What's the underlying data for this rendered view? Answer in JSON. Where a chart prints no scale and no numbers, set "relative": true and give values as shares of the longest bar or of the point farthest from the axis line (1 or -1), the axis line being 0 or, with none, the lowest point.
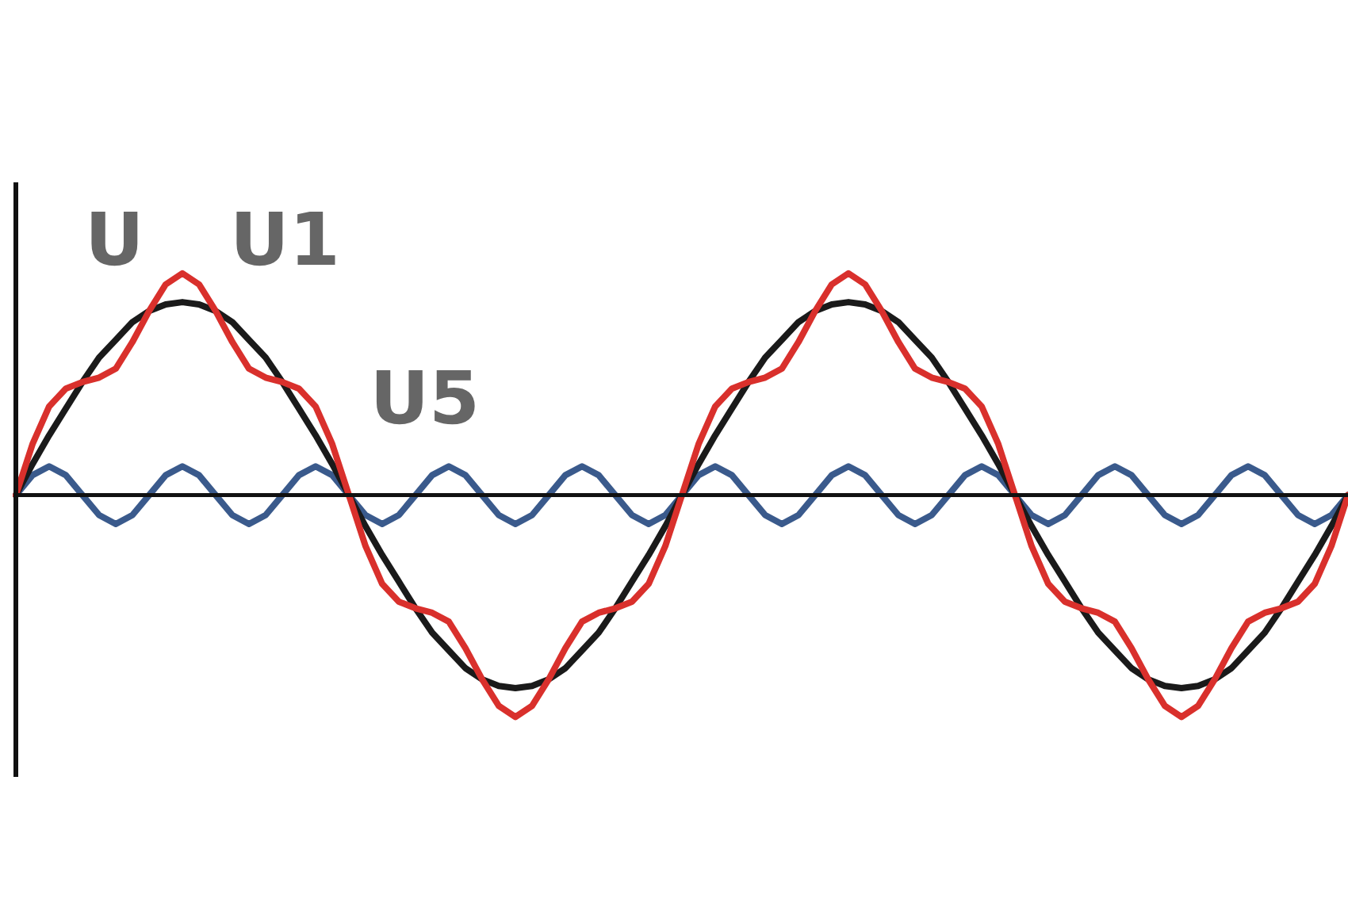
{
  "chart_data": {
    "type": "line",
    "relative": true,
    "legend": false,
    "marker": "none",
    "line_style": "solid",
    "categories": [
      null,
      null,
      null,
      null,
      null,
      null,
      null,
      null,
      null,
      null,
      null,
      null,
      null,
      null,
      null,
      null,
      null,
      null,
      null,
      null,
      null,
      null,
      null,
      null,
      null,
      null,
      null,
      null,
      null,
      null,
      null,
      null,
      null,
      null,
      null,
      null,
      null,
      null,
      null,
      null,
      null,
      null,
      null,
      null,
      null,
      null,
      null,
      null,
      null,
      null,
      null,
      null,
      null,
      null,
      null,
      null,
      null,
      null,
      null,
      null,
      null,
      null,
      null,
      null,
      null,
      null,
      null,
      null,
      null,
      null,
      null,
      null,
      null,
      null,
      null,
      null,
      null,
      null,
      null,
      null,
      null
    ],
    "series": [
      {
        "name": "U",
        "color": "#d9302c",
        "values": [
          0,
          0.23,
          0.4,
          0.48,
          0.51,
          0.53,
          0.57,
          0.69,
          0.83,
          0.95,
          1.0,
          0.95,
          0.83,
          0.69,
          0.57,
          0.53,
          0.51,
          0.48,
          0.4,
          0.23,
          0,
          -0.23,
          -0.4,
          -0.48,
          -0.51,
          -0.53,
          -0.57,
          -0.69,
          -0.83,
          -0.95,
          -1.0,
          -0.95,
          -0.83,
          -0.69,
          -0.57,
          -0.53,
          -0.51,
          -0.48,
          -0.4,
          -0.23,
          0,
          0.23,
          0.4,
          0.48,
          0.51,
          0.53,
          0.57,
          0.69,
          0.83,
          0.95,
          1.0,
          0.95,
          0.83,
          0.69,
          0.57,
          0.53,
          0.51,
          0.48,
          0.4,
          0.23,
          0,
          -0.23,
          -0.4,
          -0.48,
          -0.51,
          -0.53,
          -0.57,
          -0.69,
          -0.83,
          -0.95,
          -1.0,
          -0.95,
          -0.83,
          -0.69,
          -0.57,
          -0.53,
          -0.51,
          -0.48,
          -0.4,
          -0.23,
          0
        ]
      },
      {
        "name": "U1",
        "color": "#1a1a1a",
        "values": [
          0,
          0.14,
          0.27,
          0.39,
          0.51,
          0.62,
          0.7,
          0.78,
          0.83,
          0.86,
          0.87,
          0.86,
          0.83,
          0.78,
          0.7,
          0.62,
          0.51,
          0.39,
          0.27,
          0.14,
          0,
          -0.14,
          -0.27,
          -0.39,
          -0.51,
          -0.62,
          -0.7,
          -0.78,
          -0.83,
          -0.86,
          -0.87,
          -0.86,
          -0.83,
          -0.78,
          -0.7,
          -0.62,
          -0.51,
          -0.39,
          -0.27,
          -0.14,
          0,
          0.14,
          0.27,
          0.39,
          0.51,
          0.62,
          0.7,
          0.78,
          0.83,
          0.86,
          0.87,
          0.86,
          0.83,
          0.78,
          0.7,
          0.62,
          0.51,
          0.39,
          0.27,
          0.14,
          0,
          -0.14,
          -0.27,
          -0.39,
          -0.51,
          -0.62,
          -0.7,
          -0.78,
          -0.83,
          -0.86,
          -0.87,
          -0.86,
          -0.83,
          -0.78,
          -0.7,
          -0.62,
          -0.51,
          -0.39,
          -0.27,
          -0.14,
          0
        ]
      },
      {
        "name": "U5",
        "color": "#3a5a8c",
        "values": [
          0,
          0.09,
          0.13,
          0.09,
          0,
          -0.09,
          -0.13,
          -0.09,
          0,
          0.09,
          0.13,
          0.09,
          0,
          -0.09,
          -0.13,
          -0.09,
          0,
          0.09,
          0.13,
          0.09,
          0,
          -0.09,
          -0.13,
          -0.09,
          0,
          0.09,
          0.13,
          0.09,
          0,
          -0.09,
          -0.13,
          -0.09,
          0,
          0.09,
          0.13,
          0.09,
          0,
          -0.09,
          -0.13,
          -0.09,
          0,
          0.09,
          0.13,
          0.09,
          0,
          -0.09,
          -0.13,
          -0.09,
          0,
          0.09,
          0.13,
          0.09,
          0,
          -0.09,
          -0.13,
          -0.09,
          0,
          0.09,
          0.13,
          0.09,
          0,
          -0.09,
          -0.13,
          -0.09,
          0,
          0.09,
          0.13,
          0.09,
          0,
          -0.09,
          -0.13,
          -0.09,
          0,
          0.09,
          0.13,
          0.09,
          0,
          -0.09,
          -0.13,
          -0.09,
          0
        ]
      }
    ]
  }
}
